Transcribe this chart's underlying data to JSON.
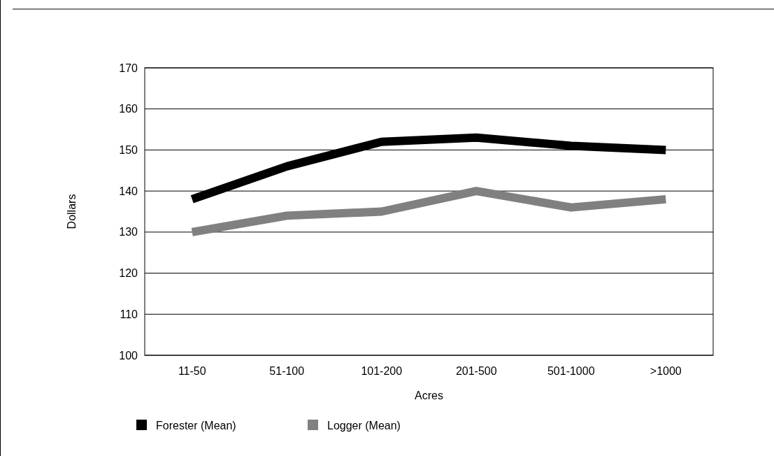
{
  "chart_data": {
    "type": "line",
    "xlabel": "Acres",
    "ylabel": "Dollars",
    "categories": [
      "11-50",
      "51-100",
      "101-200",
      "201-500",
      "501-1000",
      ">1000"
    ],
    "series": [
      {
        "name": "Forester (Mean)",
        "color": "#000000",
        "values": [
          138,
          146,
          152,
          153,
          151,
          150
        ]
      },
      {
        "name": "Logger (Mean)",
        "color": "#808080",
        "values": [
          130,
          134,
          135,
          140,
          136,
          138
        ]
      }
    ],
    "ylim": [
      100,
      170
    ],
    "yticks": [
      100,
      110,
      120,
      130,
      140,
      150,
      160,
      170
    ],
    "grid": "y",
    "legend": "bottom left",
    "marker": "none",
    "line_style": "solid"
  }
}
